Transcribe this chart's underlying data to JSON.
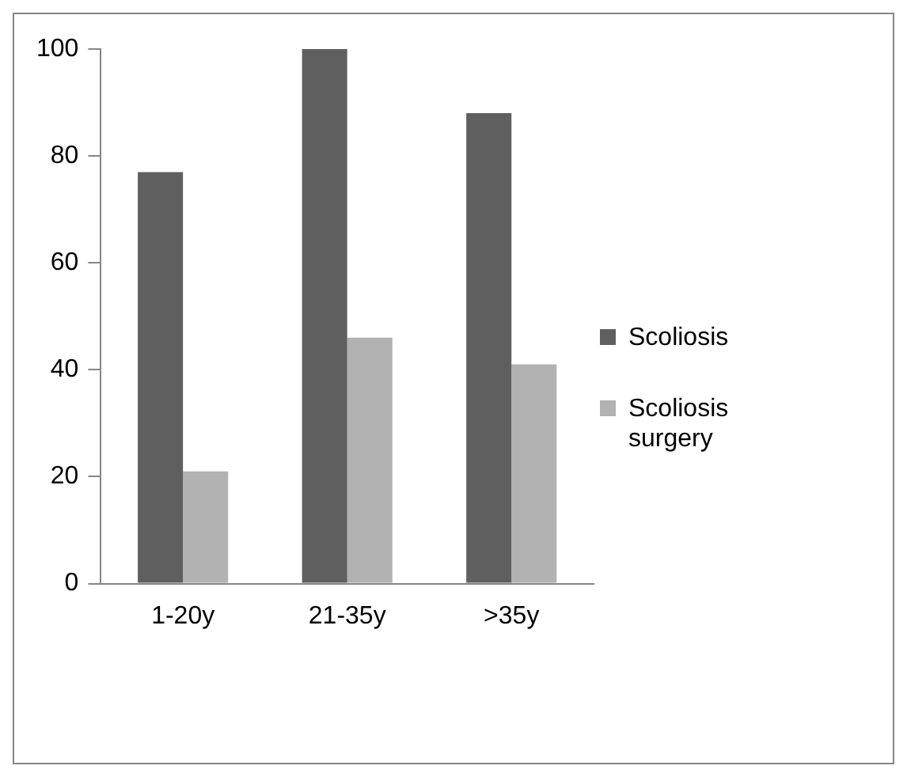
{
  "chart_data": {
    "type": "bar",
    "categories": [
      "1-20y",
      "21-35y",
      ">35y"
    ],
    "series": [
      {
        "name": "Scoliosis",
        "color": "#5f5f5f",
        "values": [
          77,
          100,
          88
        ]
      },
      {
        "name": "Scoliosis surgery",
        "color": "#b2b2b2",
        "values": [
          21,
          46,
          41
        ]
      }
    ],
    "ylim": [
      0,
      100
    ],
    "yticks": [
      0,
      20,
      40,
      60,
      80,
      100
    ],
    "grid": false,
    "legend": "right"
  }
}
